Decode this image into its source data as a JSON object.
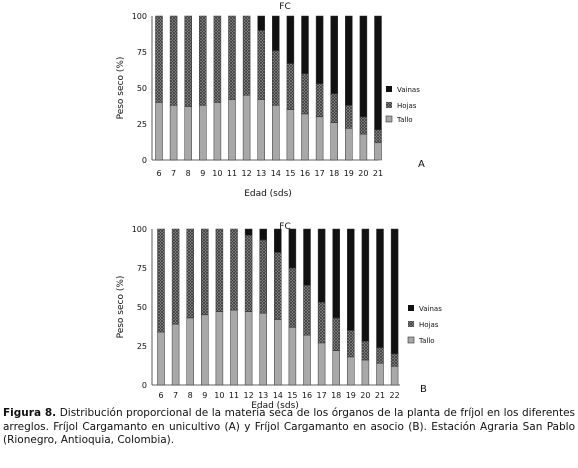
{
  "chart_data": [
    {
      "type": "bar",
      "stacked": true,
      "panel_label": "A",
      "title": "FC",
      "xlabel": "Edad (sds)",
      "ylabel": "Peso seco (%)",
      "ylim": [
        0,
        100
      ],
      "yticks": [
        "0",
        "25",
        "50",
        "75",
        "100"
      ],
      "categories": [
        "6",
        "7",
        "8",
        "9",
        "10",
        "11",
        "12",
        "13",
        "14",
        "15",
        "16",
        "17",
        "18",
        "19",
        "20",
        "21"
      ],
      "series": [
        {
          "name": "Tallo",
          "values": [
            40,
            38,
            37,
            38,
            40,
            42,
            45,
            42,
            38,
            35,
            32,
            30,
            26,
            22,
            18,
            12
          ]
        },
        {
          "name": "Hojas",
          "values": [
            60,
            62,
            63,
            62,
            60,
            58,
            55,
            48,
            38,
            32,
            28,
            23,
            20,
            16,
            12,
            9
          ]
        },
        {
          "name": "Vainas",
          "values": [
            0,
            0,
            0,
            0,
            0,
            0,
            0,
            10,
            24,
            33,
            40,
            47,
            54,
            62,
            70,
            79
          ]
        }
      ],
      "legend": {
        "placement": "right",
        "items": [
          "Vainas",
          "Hojas",
          "Tallo"
        ]
      },
      "colors": {
        "Tallo": "#a8a8a8",
        "Hojas": "#6e6e6e",
        "Vainas": "#111111"
      }
    },
    {
      "type": "bar",
      "stacked": true,
      "panel_label": "B",
      "title": "FC",
      "xlabel": "Edad (sds)",
      "ylabel": "Peso seco (%)",
      "ylim": [
        0,
        100
      ],
      "yticks": [
        "0",
        "25",
        "50",
        "75",
        "100"
      ],
      "categories": [
        "6",
        "7",
        "8",
        "9",
        "10",
        "11",
        "12",
        "13",
        "14",
        "15",
        "16",
        "17",
        "18",
        "19",
        "20",
        "21",
        "22"
      ],
      "series": [
        {
          "name": "Tallo",
          "values": [
            34,
            39,
            43,
            45,
            47,
            48,
            47,
            46,
            42,
            37,
            32,
            27,
            22,
            18,
            16,
            14,
            12
          ]
        },
        {
          "name": "Hojas",
          "values": [
            66,
            61,
            57,
            55,
            53,
            52,
            49,
            47,
            43,
            38,
            32,
            26,
            21,
            17,
            12,
            10,
            8
          ]
        },
        {
          "name": "Vainas",
          "values": [
            0,
            0,
            0,
            0,
            0,
            0,
            4,
            7,
            15,
            25,
            36,
            47,
            57,
            65,
            72,
            76,
            80
          ]
        }
      ],
      "legend": {
        "placement": "right",
        "items": [
          "Vainas",
          "Hojas",
          "Tallo"
        ]
      },
      "colors": {
        "Tallo": "#a8a8a8",
        "Hojas": "#6e6e6e",
        "Vainas": "#111111"
      }
    }
  ],
  "caption": {
    "label": "Figura 8.",
    "text": " Distribución proporcional de la materia seca de los órganos de la planta de fríjol en los diferentes arreglos. Fríjol Cargamanto en unicultivo (A) y Fríjol Cargamanto en asocio (B).  Estación Agraria San Pablo (Rionegro, Antioquia, Colombia)."
  }
}
